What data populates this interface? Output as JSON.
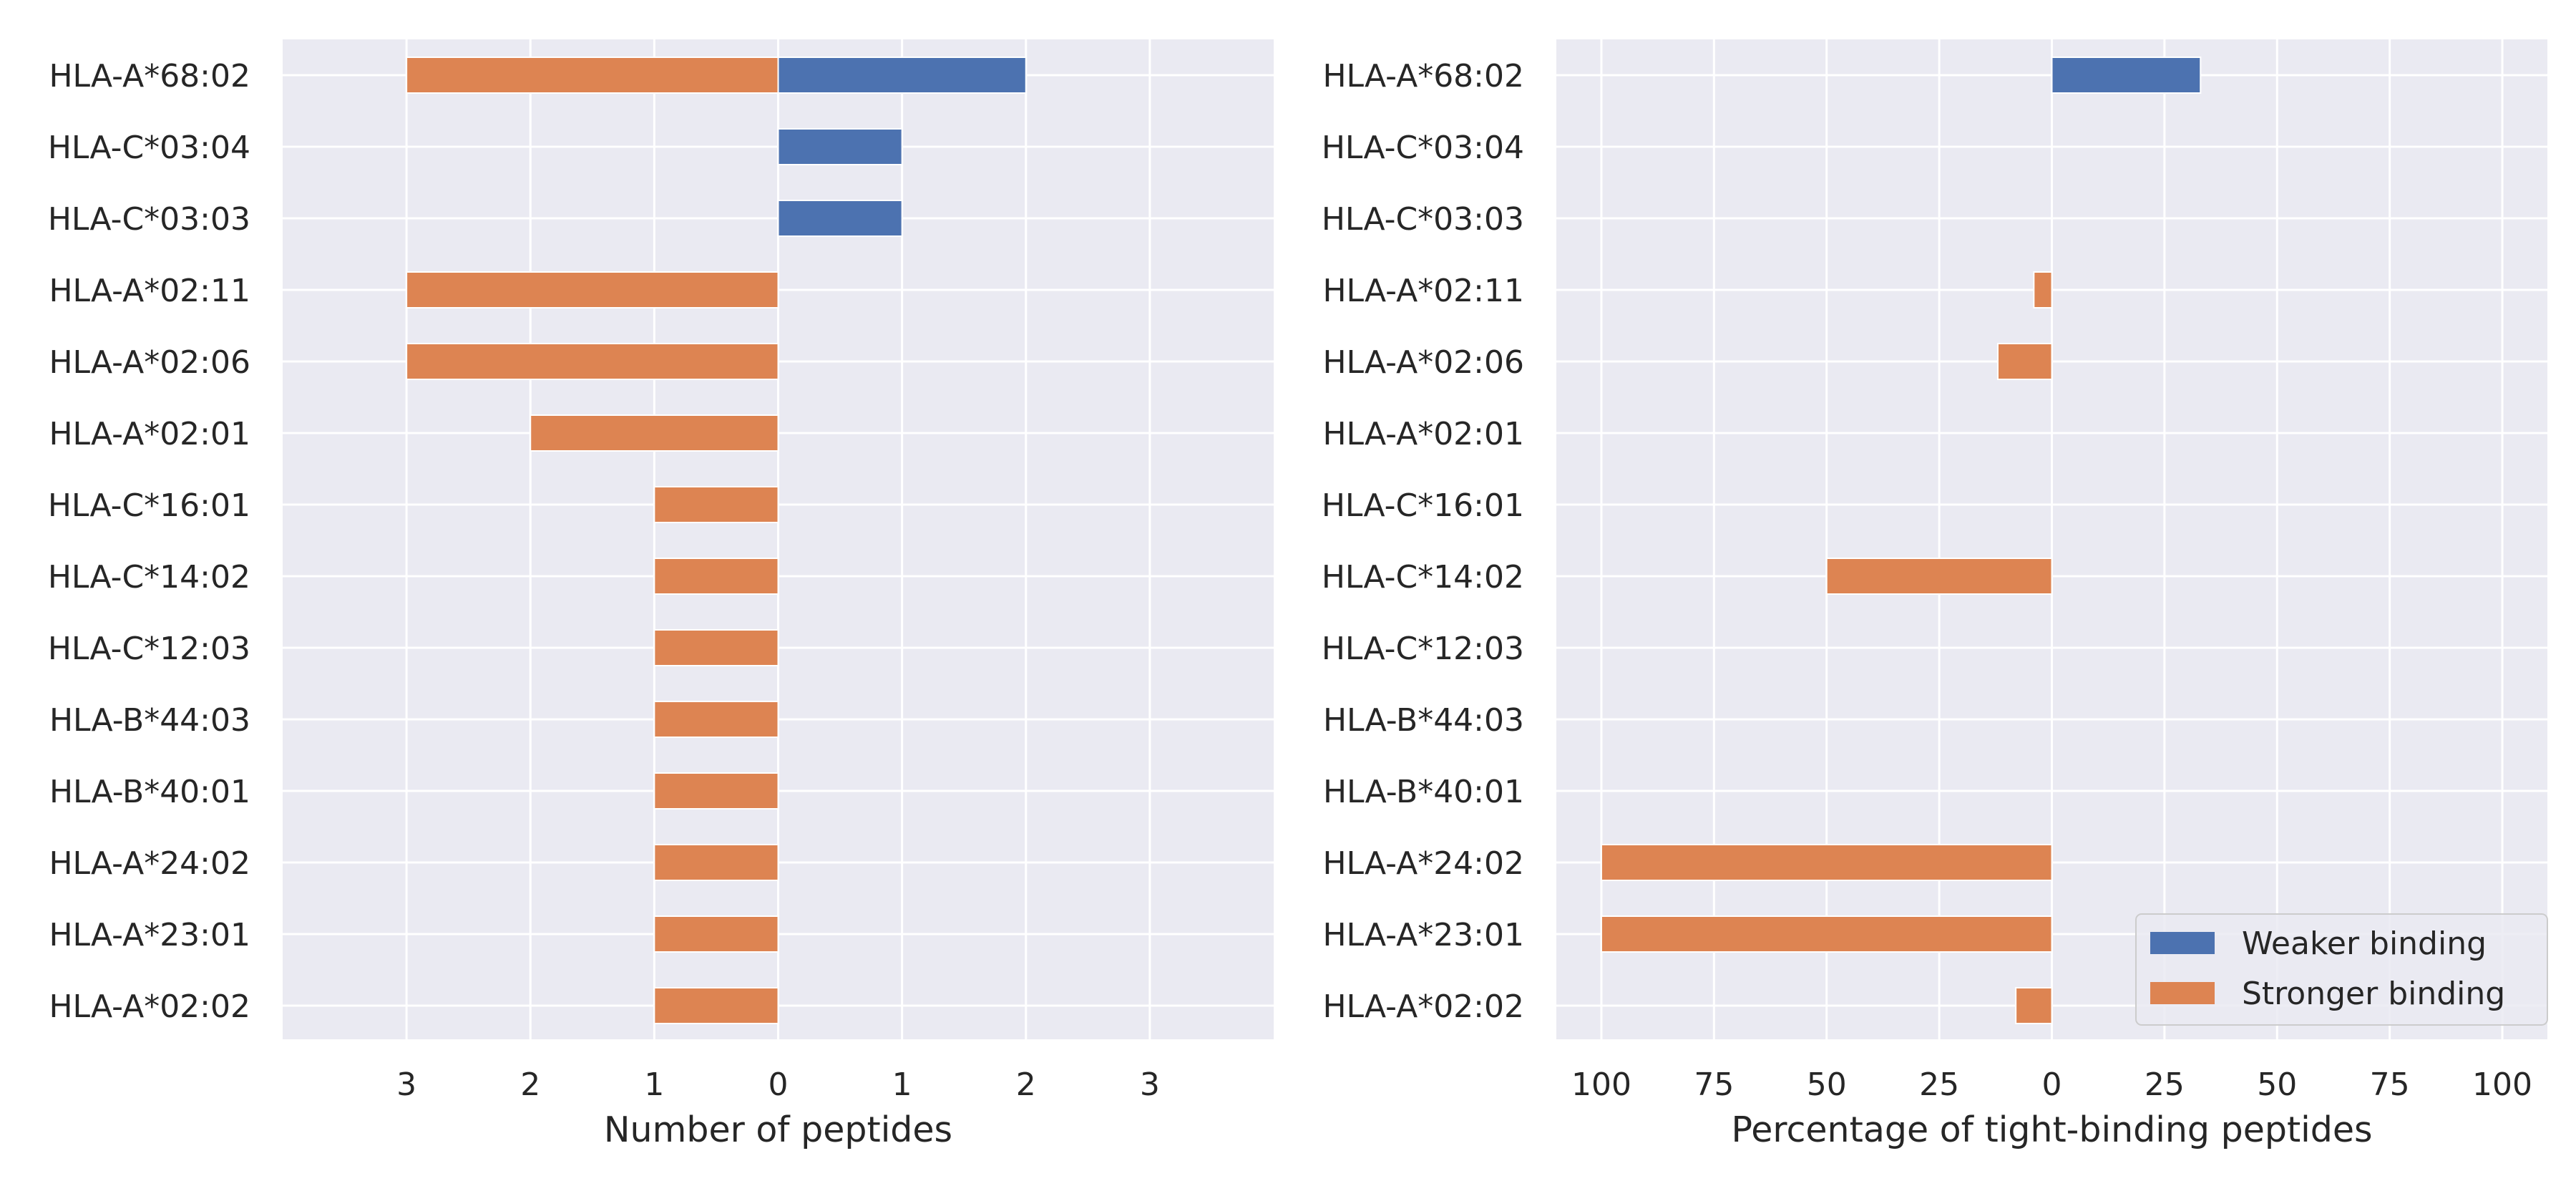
{
  "colors": {
    "weaker": "#4c72b0",
    "stronger": "#dd8452",
    "panel_bg": "#eaeaf2",
    "grid": "#ffffff",
    "text": "#262626"
  },
  "legend": {
    "placement": "lower-right",
    "items": [
      {
        "key": "weaker",
        "label": "Weaker binding"
      },
      {
        "key": "stronger",
        "label": "Stronger binding"
      }
    ]
  },
  "chart_data": [
    {
      "type": "bar",
      "orientation": "horizontal",
      "title": "",
      "xlabel": "Number of peptides",
      "ylabel": "",
      "grid": true,
      "xlim": [
        -4,
        4
      ],
      "xticks": [
        -3,
        -2,
        -1,
        0,
        1,
        2,
        3
      ],
      "xtick_labels": [
        "3",
        "2",
        "1",
        "0",
        "1",
        "2",
        "3"
      ],
      "categories": [
        "HLA-A*68:02",
        "HLA-C*03:04",
        "HLA-C*03:03",
        "HLA-A*02:11",
        "HLA-A*02:06",
        "HLA-A*02:01",
        "HLA-C*16:01",
        "HLA-C*14:02",
        "HLA-C*12:03",
        "HLA-B*44:03",
        "HLA-B*40:01",
        "HLA-A*24:02",
        "HLA-A*23:01",
        "HLA-A*02:02"
      ],
      "series": [
        {
          "name": "Weaker binding",
          "key": "weaker",
          "values": [
            2,
            1,
            1,
            0,
            0,
            0,
            0,
            0,
            0,
            0,
            0,
            0,
            0,
            0
          ]
        },
        {
          "name": "Stronger binding",
          "key": "stronger",
          "values": [
            -3,
            0,
            0,
            -3,
            -3,
            -2,
            -1,
            -1,
            -1,
            -1,
            -1,
            -1,
            -1,
            -1
          ]
        }
      ]
    },
    {
      "type": "bar",
      "orientation": "horizontal",
      "title": "",
      "xlabel": "Percentage of tight-binding peptides",
      "ylabel": "",
      "grid": true,
      "xlim": [
        -110,
        110
      ],
      "xticks": [
        -100,
        -75,
        -50,
        -25,
        0,
        25,
        50,
        75,
        100
      ],
      "xtick_labels": [
        "100",
        "75",
        "50",
        "25",
        "0",
        "25",
        "50",
        "75",
        "100"
      ],
      "categories": [
        "HLA-A*68:02",
        "HLA-C*03:04",
        "HLA-C*03:03",
        "HLA-A*02:11",
        "HLA-A*02:06",
        "HLA-A*02:01",
        "HLA-C*16:01",
        "HLA-C*14:02",
        "HLA-C*12:03",
        "HLA-B*44:03",
        "HLA-B*40:01",
        "HLA-A*24:02",
        "HLA-A*23:01",
        "HLA-A*02:02"
      ],
      "series": [
        {
          "name": "Weaker binding",
          "key": "weaker",
          "values": [
            33,
            0,
            0,
            0,
            0,
            0,
            0,
            0,
            0,
            0,
            0,
            0,
            0,
            0
          ]
        },
        {
          "name": "Stronger binding",
          "key": "stronger",
          "values": [
            0,
            0,
            0,
            -4,
            -12,
            0,
            0,
            -50,
            0,
            0,
            0,
            -100,
            -100,
            -8
          ]
        }
      ]
    }
  ]
}
